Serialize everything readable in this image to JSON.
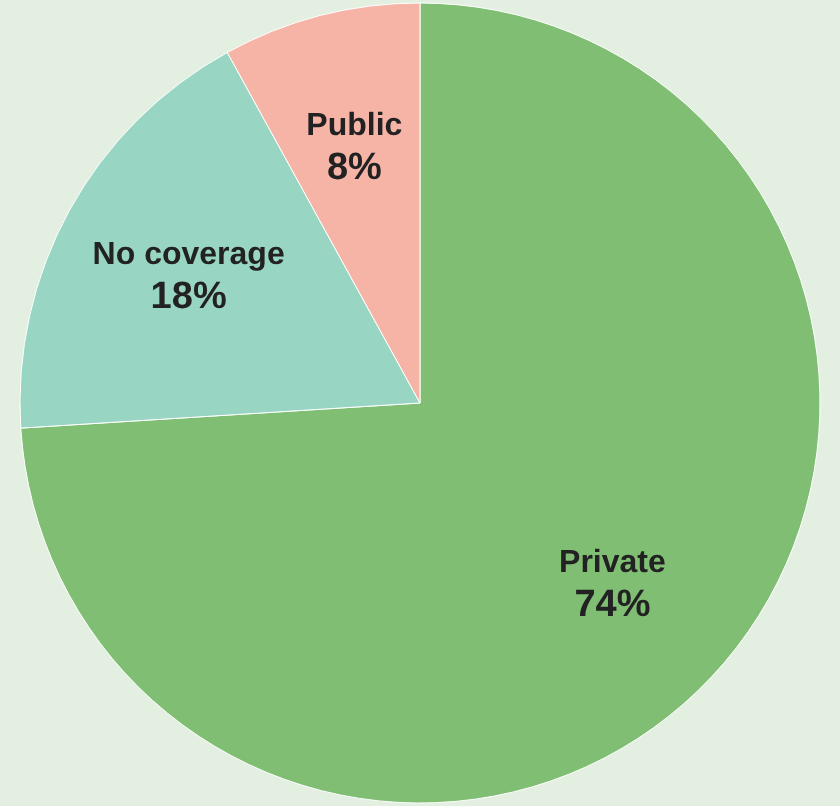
{
  "chart_data": {
    "type": "pie",
    "categories": [
      "Private",
      "No coverage",
      "Public"
    ],
    "values": [
      74,
      18,
      8
    ],
    "value_labels": [
      "74%",
      "18%",
      "8%"
    ],
    "colors": [
      "#80bf73",
      "#98d5c2",
      "#f6b4a7"
    ]
  }
}
